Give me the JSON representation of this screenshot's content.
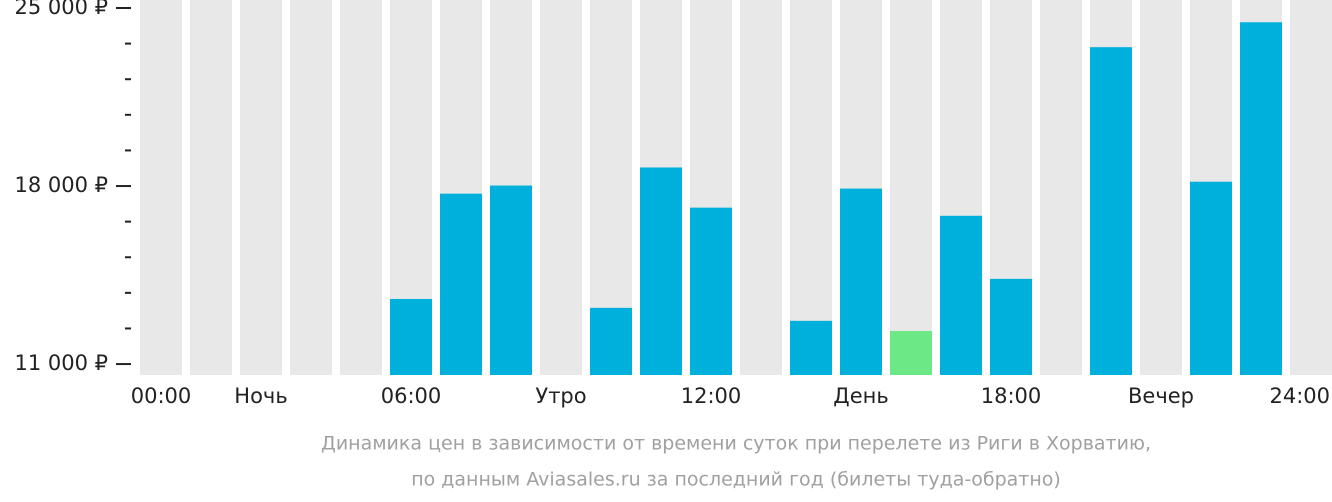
{
  "chart_data": {
    "type": "bar",
    "caption": [
      "Динамика цен в зависимости от времени суток при перелете из Риги в Хорватию,",
      "по данным Aviasales.ru за последний год (билеты туда-обратно)"
    ],
    "categories": [
      "00:00",
      null,
      "Ночь",
      null,
      null,
      "06:00",
      null,
      null,
      "Утро",
      null,
      null,
      "12:00",
      null,
      null,
      "День",
      null,
      null,
      "18:00",
      null,
      null,
      "Вечер",
      null,
      null,
      "24:00"
    ],
    "values": [
      null,
      null,
      null,
      null,
      null,
      13560,
      17700,
      18020,
      null,
      13210,
      18730,
      17150,
      null,
      12700,
      17900,
      12300,
      16830,
      14350,
      null,
      23460,
      null,
      18170,
      24440,
      null
    ],
    "colors": [
      null,
      null,
      null,
      null,
      null,
      "#00b0dc",
      "#00b0dc",
      "#00b0dc",
      null,
      "#00b0dc",
      "#00b0dc",
      "#00b0dc",
      null,
      "#00b0dc",
      "#00b0dc",
      "#6ce986",
      "#00b0dc",
      "#00b0dc",
      null,
      "#00b0dc",
      null,
      "#00b0dc",
      "#00b0dc",
      null
    ],
    "background_color": "#e8e8e8",
    "ylim": [
      10570,
      25315
    ],
    "yticks": [
      {
        "value": 11000,
        "label": "11 000 ₽"
      },
      12400,
      13800,
      15200,
      16600,
      {
        "value": 18000,
        "label": "18 000 ₽"
      },
      19400,
      20800,
      22200,
      23600,
      {
        "value": 25000,
        "label": "25 000 ₽"
      }
    ]
  }
}
